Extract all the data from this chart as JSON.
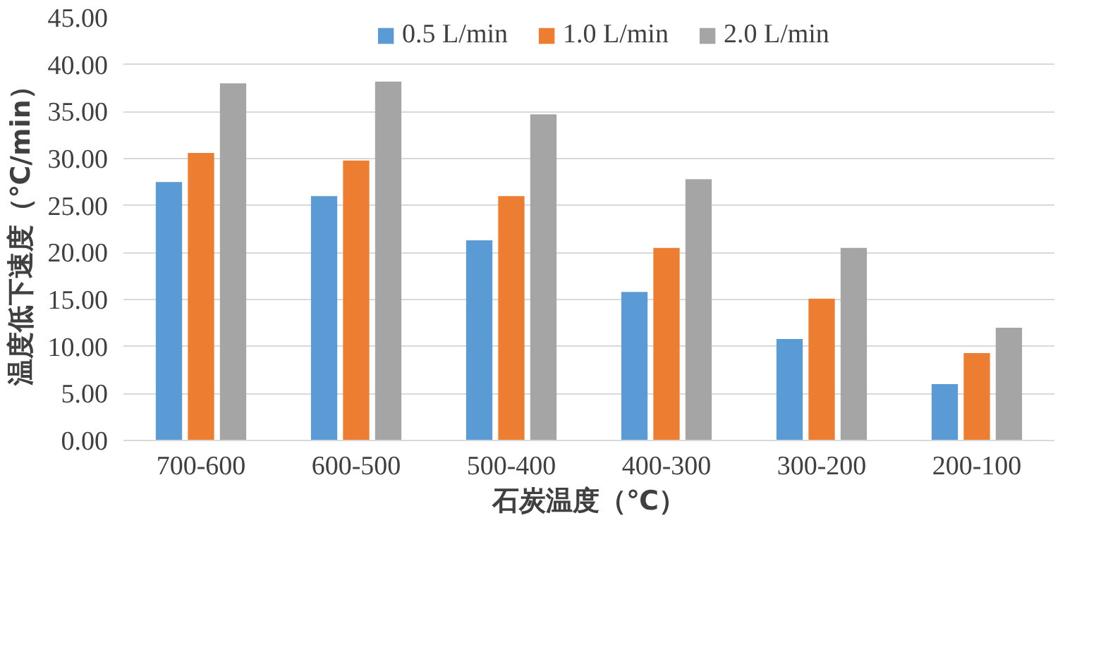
{
  "chart_data": {
    "type": "bar",
    "xlabel": "石炭温度（℃）",
    "ylabel": "温度低下速度（℃/min）",
    "categories": [
      "700-600",
      "600-500",
      "500-400",
      "400-300",
      "300-200",
      "200-100"
    ],
    "series": [
      {
        "name": "0.5 L/min",
        "color": "#5b9bd5",
        "values": [
          27.5,
          26.0,
          21.3,
          15.8,
          10.8,
          6.0
        ]
      },
      {
        "name": "1.0 L/min",
        "color": "#ed7d31",
        "values": [
          30.6,
          29.8,
          26.0,
          20.5,
          15.1,
          9.3
        ]
      },
      {
        "name": "2.0 L/min",
        "color": "#a5a5a5",
        "values": [
          38.0,
          38.2,
          34.7,
          27.8,
          20.5,
          12.0
        ]
      }
    ],
    "ylim": [
      0,
      45
    ],
    "yticks": [
      {
        "value": 0,
        "label": "0.00"
      },
      {
        "value": 5,
        "label": "5.00"
      },
      {
        "value": 10,
        "label": "10.00"
      },
      {
        "value": 15,
        "label": "15.00"
      },
      {
        "value": 20,
        "label": "20.00"
      },
      {
        "value": 25,
        "label": "25.00"
      },
      {
        "value": 30,
        "label": "30.00"
      },
      {
        "value": 35,
        "label": "35.00"
      },
      {
        "value": 40,
        "label": "40.00"
      },
      {
        "value": 45,
        "label": "45.00"
      }
    ],
    "grid": "y",
    "legend": "top"
  }
}
